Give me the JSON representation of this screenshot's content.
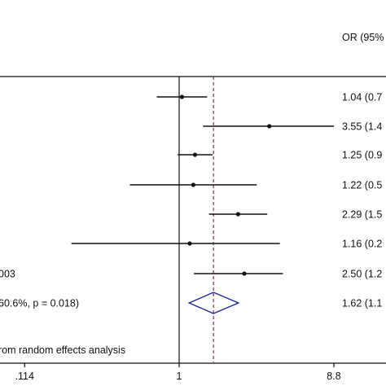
{
  "chart_data": {
    "type": "forest",
    "header_label": "OR (95%",
    "x_scale": "log",
    "xlim": [
      0.115,
      12
    ],
    "ticks": [
      {
        "value": 0.114,
        "label": ".114"
      },
      {
        "value": 1,
        "label": "1"
      },
      {
        "value": 8.8,
        "label": "8.8"
      }
    ],
    "null_value": 1,
    "pooled_line_value": 1.62,
    "rows": [
      {
        "label": "",
        "or": 1.04,
        "lo": 0.73,
        "hi": 1.48,
        "text": "1.04 (0.7"
      },
      {
        "label": "",
        "or": 3.55,
        "lo": 1.4,
        "hi": 8.8,
        "text": "3.55 (1.4"
      },
      {
        "label": "",
        "or": 1.25,
        "lo": 0.98,
        "hi": 1.6,
        "text": "1.25 (0.9"
      },
      {
        "label": "",
        "or": 1.22,
        "lo": 0.5,
        "hi": 2.98,
        "text": "1.22 (0.5"
      },
      {
        "label": "",
        "or": 2.29,
        "lo": 1.52,
        "hi": 3.45,
        "text": "2.29 (1.5"
      },
      {
        "label": "",
        "or": 1.16,
        "lo": 0.22,
        "hi": 4.12,
        "text": "1.16 (0.2"
      },
      {
        "label": "003",
        "or": 2.5,
        "lo": 1.23,
        "hi": 4.3,
        "text": "2.50 (1.2"
      }
    ],
    "overall": {
      "label": "60.6%, p = 0.018)",
      "or": 1.62,
      "lo": 1.15,
      "hi": 2.3,
      "text": "1.62 (1.1"
    },
    "footnote": "rom random effects analysis",
    "colors": {
      "ink": "#111111",
      "pooled_line": "#a32638",
      "diamond": "#1f2a9a"
    }
  }
}
